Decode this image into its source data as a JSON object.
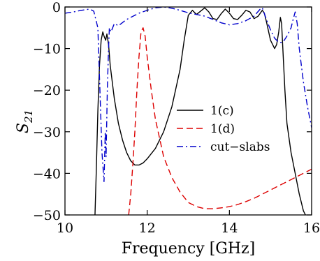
{
  "chart_data": {
    "type": "line",
    "title": "",
    "xlabel": "Frequency [GHz]",
    "ylabel_main": "S",
    "ylabel_sub": "21",
    "xlim": [
      10,
      16
    ],
    "ylim": [
      -50,
      0
    ],
    "x_ticks": [
      10,
      12,
      14,
      16
    ],
    "x_tick_labels": [
      "10",
      "12",
      "14",
      "16"
    ],
    "y_ticks": [
      0,
      -10,
      -20,
      -30,
      -40,
      -50
    ],
    "y_tick_labels": [
      "0",
      "−10",
      "−20",
      "−30",
      "−40",
      "−50"
    ],
    "grid": false,
    "legend_position": "right-middle",
    "series": [
      {
        "name": "1(c)",
        "color": "#000000",
        "dash": "solid",
        "points": [
          [
            10.73,
            -50
          ],
          [
            10.76,
            -40
          ],
          [
            10.8,
            -25
          ],
          [
            10.84,
            -14
          ],
          [
            10.88,
            -8
          ],
          [
            10.92,
            -6
          ],
          [
            10.95,
            -7
          ],
          [
            10.99,
            -8
          ],
          [
            11.02,
            -6.5
          ],
          [
            11.06,
            -9
          ],
          [
            11.1,
            -14
          ],
          [
            11.2,
            -22
          ],
          [
            11.3,
            -28
          ],
          [
            11.4,
            -32
          ],
          [
            11.5,
            -35
          ],
          [
            11.6,
            -37
          ],
          [
            11.7,
            -38
          ],
          [
            11.8,
            -38
          ],
          [
            11.9,
            -37.5
          ],
          [
            12.0,
            -36.5
          ],
          [
            12.2,
            -34
          ],
          [
            12.4,
            -30
          ],
          [
            12.6,
            -24
          ],
          [
            12.8,
            -15
          ],
          [
            12.9,
            -8
          ],
          [
            13.0,
            -2
          ],
          [
            13.1,
            -0.8
          ],
          [
            13.2,
            -1.8
          ],
          [
            13.3,
            -1
          ],
          [
            13.4,
            -0.2
          ],
          [
            13.5,
            -1.2
          ],
          [
            13.6,
            -2.8
          ],
          [
            13.7,
            -3.0
          ],
          [
            13.8,
            -1.6
          ],
          [
            13.9,
            -0.5
          ],
          [
            14.0,
            -1.5
          ],
          [
            14.1,
            -2.8
          ],
          [
            14.2,
            -3.0
          ],
          [
            14.3,
            -2.0
          ],
          [
            14.4,
            -0.8
          ],
          [
            14.5,
            -1.2
          ],
          [
            14.6,
            -2.8
          ],
          [
            14.7,
            -2.2
          ],
          [
            14.8,
            -0.8
          ],
          [
            14.85,
            -1.5
          ],
          [
            14.9,
            -3.5
          ],
          [
            15.0,
            -8
          ],
          [
            15.1,
            -10
          ],
          [
            15.15,
            -9
          ],
          [
            15.2,
            -6
          ],
          [
            15.24,
            -2.5
          ],
          [
            15.27,
            -4
          ],
          [
            15.3,
            -10
          ],
          [
            15.35,
            -20
          ],
          [
            15.4,
            -28
          ],
          [
            15.5,
            -35
          ],
          [
            15.6,
            -40
          ],
          [
            15.7,
            -45
          ],
          [
            15.8,
            -49
          ],
          [
            15.85,
            -50
          ]
        ]
      },
      {
        "name": "1(d)",
        "color": "#dd0000",
        "dash": "dashed",
        "points": [
          [
            11.55,
            -50
          ],
          [
            11.6,
            -45
          ],
          [
            11.65,
            -38
          ],
          [
            11.7,
            -30
          ],
          [
            11.75,
            -20
          ],
          [
            11.8,
            -12
          ],
          [
            11.85,
            -6
          ],
          [
            11.9,
            -5
          ],
          [
            11.95,
            -7
          ],
          [
            12.0,
            -12
          ],
          [
            12.1,
            -20
          ],
          [
            12.2,
            -27
          ],
          [
            12.4,
            -36
          ],
          [
            12.6,
            -41
          ],
          [
            12.8,
            -44.5
          ],
          [
            13.0,
            -47
          ],
          [
            13.2,
            -48
          ],
          [
            13.4,
            -48.5
          ],
          [
            13.6,
            -48.5
          ],
          [
            13.8,
            -48.3
          ],
          [
            14.0,
            -48
          ],
          [
            14.2,
            -47.5
          ],
          [
            14.4,
            -46.8
          ],
          [
            14.6,
            -46
          ],
          [
            14.8,
            -45
          ],
          [
            15.0,
            -44
          ],
          [
            15.2,
            -43
          ],
          [
            15.4,
            -42
          ],
          [
            15.6,
            -41
          ],
          [
            15.8,
            -40
          ],
          [
            16.0,
            -39
          ]
        ]
      },
      {
        "name": "cut−slabs",
        "color": "#0000cc",
        "dash": "dashdot",
        "points": [
          [
            10.0,
            -1.5
          ],
          [
            10.2,
            -1.2
          ],
          [
            10.4,
            -0.8
          ],
          [
            10.6,
            -0.5
          ],
          [
            10.7,
            -1
          ],
          [
            10.8,
            -5
          ],
          [
            10.85,
            -20
          ],
          [
            10.9,
            -35
          ],
          [
            10.95,
            -42
          ],
          [
            10.98,
            -30
          ],
          [
            11.0,
            -36
          ],
          [
            11.03,
            -20
          ],
          [
            11.06,
            -10
          ],
          [
            11.08,
            -5
          ],
          [
            11.12,
            -6
          ],
          [
            11.2,
            -4
          ],
          [
            11.3,
            -4.5
          ],
          [
            11.5,
            -3
          ],
          [
            11.8,
            -1.5
          ],
          [
            12.0,
            -0.8
          ],
          [
            12.2,
            -0.2
          ],
          [
            12.4,
            0
          ],
          [
            12.6,
            -0.3
          ],
          [
            12.8,
            -0.8
          ],
          [
            13.0,
            -1.4
          ],
          [
            13.2,
            -1.8
          ],
          [
            13.4,
            -2.2
          ],
          [
            13.6,
            -3.0
          ],
          [
            13.8,
            -3.8
          ],
          [
            14.0,
            -4.3
          ],
          [
            14.2,
            -4.0
          ],
          [
            14.4,
            -3.3
          ],
          [
            14.6,
            -2.2
          ],
          [
            14.75,
            -0.5
          ],
          [
            14.8,
            -0.2
          ],
          [
            14.9,
            -3.0
          ],
          [
            15.0,
            -5.5
          ],
          [
            15.1,
            -7.5
          ],
          [
            15.2,
            -8.5
          ],
          [
            15.3,
            -8.5
          ],
          [
            15.4,
            -7.0
          ],
          [
            15.5,
            -5.0
          ],
          [
            15.55,
            -3.0
          ],
          [
            15.6,
            -1.2
          ],
          [
            15.65,
            -4.0
          ],
          [
            15.7,
            -10
          ],
          [
            15.8,
            -18
          ],
          [
            15.9,
            -24
          ],
          [
            16.0,
            -29
          ]
        ]
      }
    ]
  }
}
